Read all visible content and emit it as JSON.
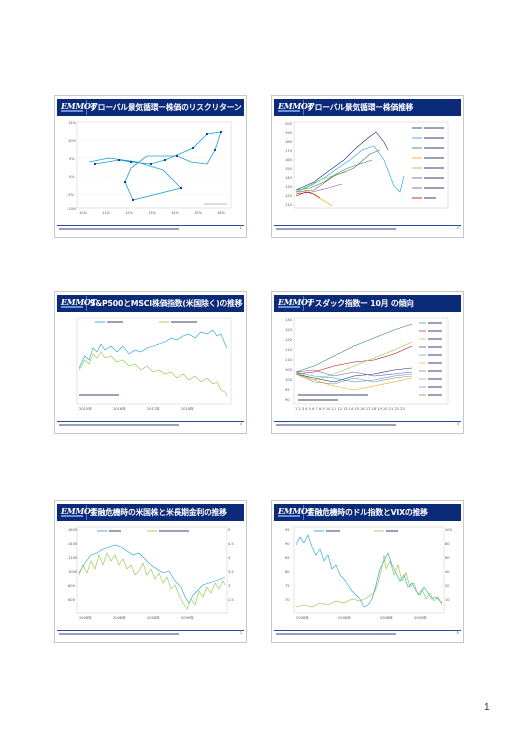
{
  "page_number": "1",
  "logo_text": "EMMOT",
  "slides": [
    {
      "title": "グローバル景気循環ー株価のリスクリターン",
      "number": "1"
    },
    {
      "title": "グローバル景気循環ー株価推移",
      "number": "2"
    },
    {
      "title": "S&P500とMSCI株価指数(米国除く)の推移",
      "number": "3"
    },
    {
      "title": "ナスダック指数ー 10月 の傾向",
      "number": "4"
    },
    {
      "title": "金融危機時の米国株と米長期金利の推移",
      "number": "5"
    },
    {
      "title": "金融危機時のドル指数とVIXの推移",
      "number": "6"
    }
  ],
  "colors": {
    "header": "#0b2a7a",
    "accent": "#1aa0d8",
    "green": "#8cc63f"
  }
}
